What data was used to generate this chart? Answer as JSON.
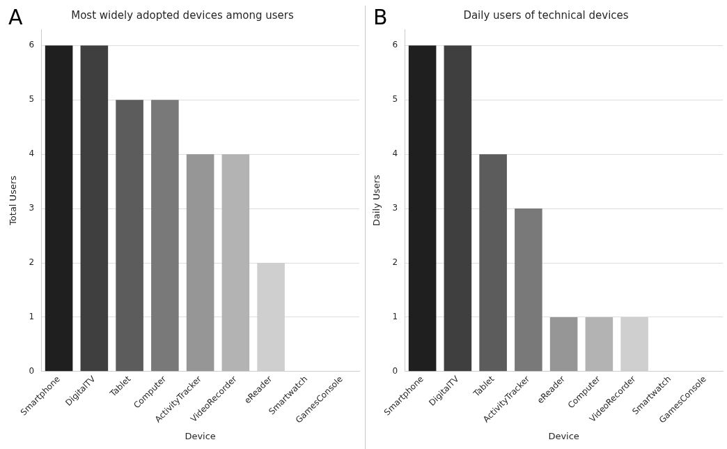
{
  "chart_data": [
    {
      "type": "bar",
      "title": "Most widely adopted devices among users",
      "xlabel": "Device",
      "ylabel": "Total Users",
      "annotations": [
        "A"
      ],
      "categories": [
        "Smartphone",
        "DigitalTV",
        "Tablet",
        "Computer",
        "ActivityTracker",
        "VideoRecorder",
        "eReader",
        "Smartwatch",
        "GamesConsole"
      ],
      "values": [
        6,
        6,
        5,
        5,
        4,
        4,
        2,
        0,
        0
      ],
      "colors": [
        "#1f1f1f",
        "#3f3f3f",
        "#5c5c5c",
        "#797979",
        "#969696",
        "#b3b3b3",
        "#cfcfcf",
        "#e2e2e2",
        "#eeeeee"
      ],
      "ylim": [
        0,
        6.3
      ],
      "yticks": [
        0,
        1,
        2,
        3,
        4,
        5,
        6
      ],
      "grid": "y",
      "legend": false
    },
    {
      "type": "bar",
      "title": "Daily users of technical devices",
      "xlabel": "Device",
      "ylabel": "Daily Users",
      "annotations": [
        "B"
      ],
      "categories": [
        "Smartphone",
        "DigitalTV",
        "Tablet",
        "ActivityTracker",
        "eReader",
        "Computer",
        "VideoRecorder",
        "Smartwatch",
        "GamesConsole"
      ],
      "values": [
        6,
        6,
        4,
        3,
        1,
        1,
        1,
        0,
        0
      ],
      "colors": [
        "#1f1f1f",
        "#3f3f3f",
        "#5c5c5c",
        "#797979",
        "#969696",
        "#b3b3b3",
        "#cfcfcf",
        "#e2e2e2",
        "#eeeeee"
      ],
      "ylim": [
        0,
        6.3
      ],
      "yticks": [
        0,
        1,
        2,
        3,
        4,
        5,
        6
      ],
      "grid": "y",
      "legend": false
    }
  ]
}
